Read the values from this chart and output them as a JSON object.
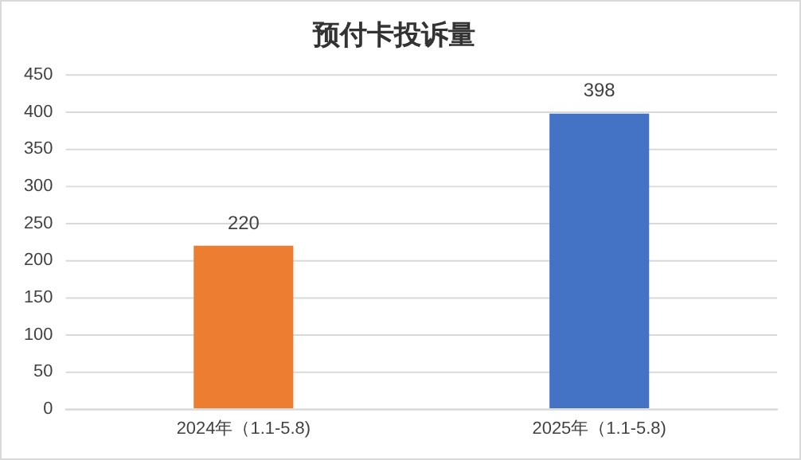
{
  "chart_data": {
    "type": "bar",
    "title": "预付卡投诉量",
    "categories": [
      "2024年（1.1-5.8)",
      "2025年（1.1-5.8)"
    ],
    "values": [
      220,
      398
    ],
    "colors": [
      "#ed7d31",
      "#4472c4"
    ],
    "ylim": [
      0,
      450
    ],
    "yticks": [
      0,
      50,
      100,
      150,
      200,
      250,
      300,
      350,
      400,
      450
    ],
    "grid": "y",
    "data_labels": true,
    "legend": false
  }
}
